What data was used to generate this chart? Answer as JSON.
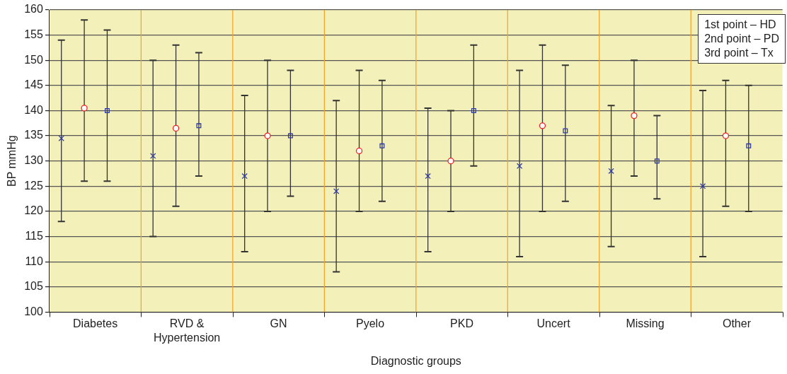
{
  "chart_data": {
    "type": "scatter",
    "xlabel": "Diagnostic groups",
    "ylabel": "BP mmHg",
    "categories": [
      "Diabetes",
      "RVD & Hypertension",
      "GN",
      "Pyelo",
      "PKD",
      "Uncert",
      "Missing",
      "Other"
    ],
    "ylim": [
      100,
      160
    ],
    "yticks": [
      100,
      105,
      110,
      115,
      120,
      125,
      130,
      135,
      140,
      145,
      150,
      155,
      160
    ],
    "grid": true,
    "series": [
      {
        "color": "#2e3aa8",
        "marker": "cross",
        "values": [
          134.5,
          131,
          127,
          124,
          127,
          129,
          128,
          125
        ],
        "errors": [
          [
            118,
            154
          ],
          [
            115,
            150
          ],
          [
            112,
            143
          ],
          [
            108,
            142
          ],
          [
            112,
            140.5
          ],
          [
            111,
            148
          ],
          [
            113,
            141
          ],
          [
            111,
            144
          ]
        ]
      },
      {
        "color": "#ee2222",
        "marker": "circle",
        "values": [
          140.5,
          136.5,
          135,
          132,
          130,
          137,
          139,
          135
        ],
        "errors": [
          [
            126,
            158
          ],
          [
            121,
            153
          ],
          [
            120,
            150
          ],
          [
            120,
            148
          ],
          [
            120,
            140
          ],
          [
            120,
            153
          ],
          [
            127,
            150
          ],
          [
            121,
            146
          ]
        ]
      },
      {
        "color": "#2e3aa8",
        "marker": "square",
        "values": [
          140,
          137,
          135,
          133,
          140,
          136,
          130,
          133
        ],
        "errors": [
          [
            126,
            156
          ],
          [
            127,
            151.5
          ],
          [
            123,
            148
          ],
          [
            122,
            146
          ],
          [
            129,
            153
          ],
          [
            122,
            149
          ],
          [
            122.5,
            139
          ],
          [
            120,
            145
          ]
        ]
      }
    ],
    "annotations": [
      "1st point – HD",
      "2nd point – PD",
      "3rd point – Tx"
    ]
  }
}
